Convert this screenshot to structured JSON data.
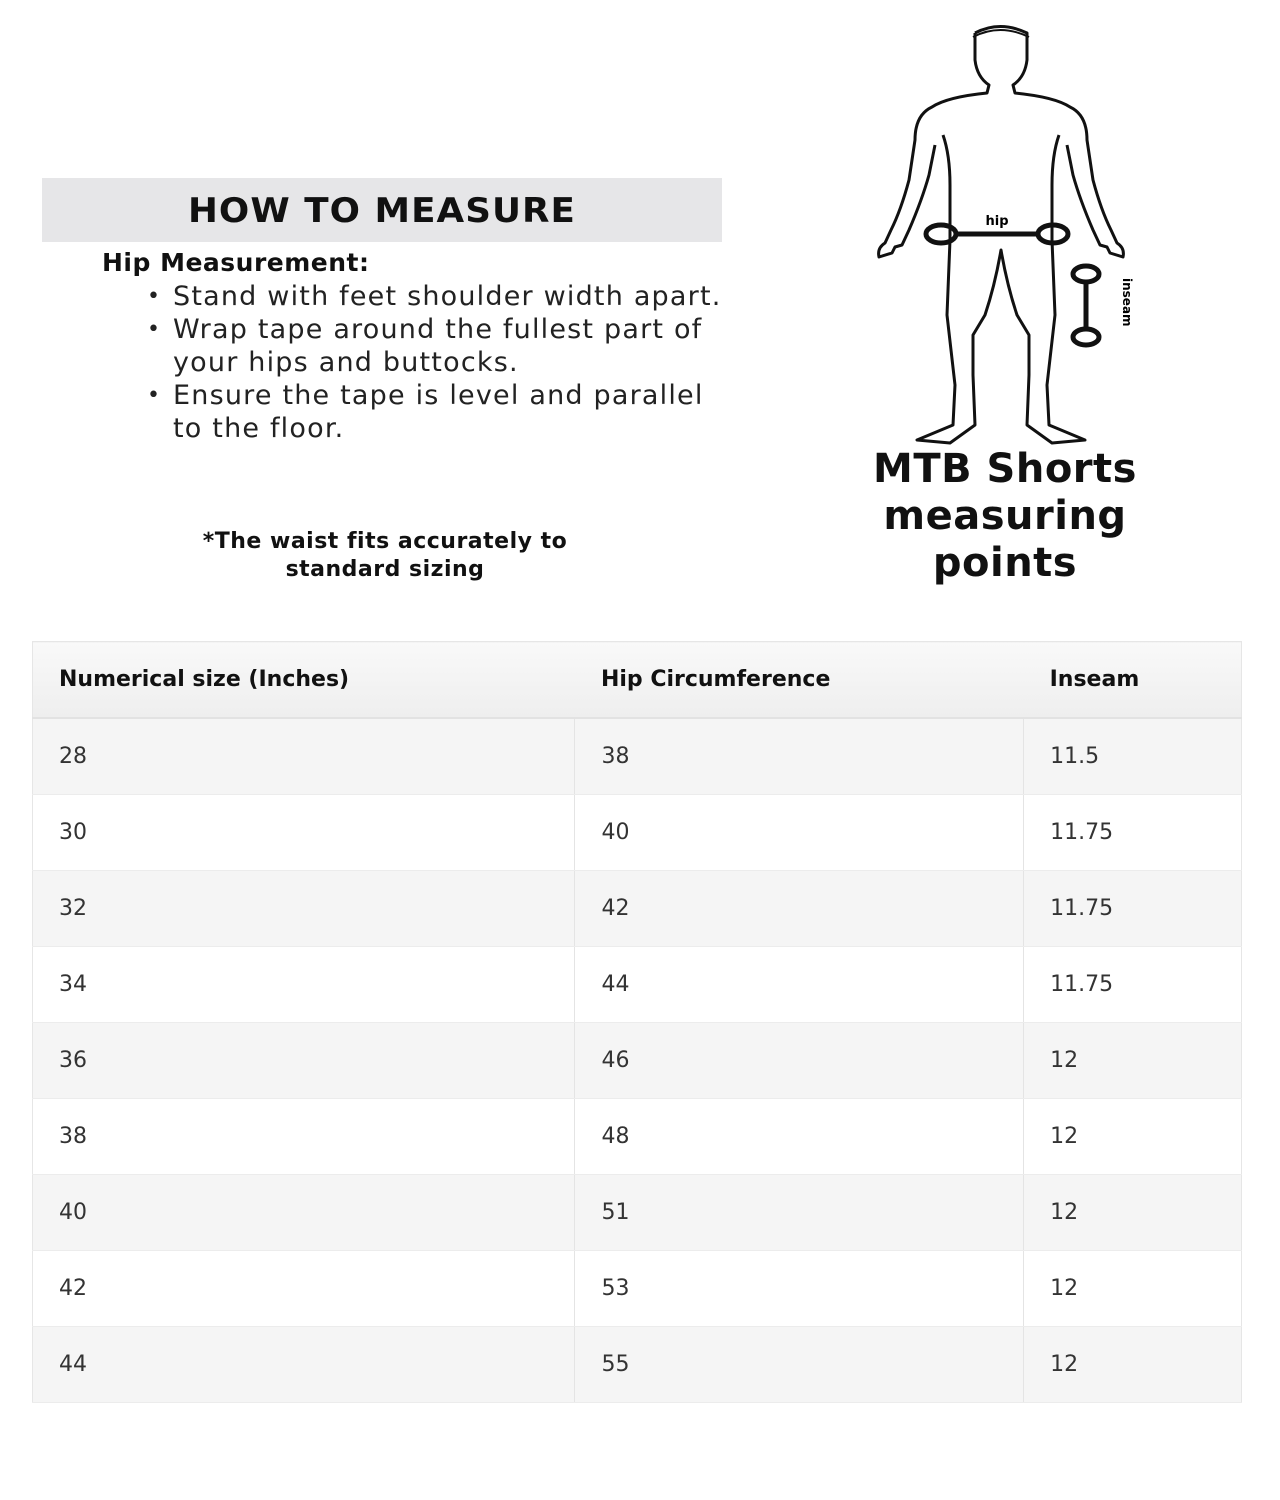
{
  "how_to_measure": {
    "title": "HOW TO MEASURE",
    "hip_title": "Hip Measurement:",
    "bullets": [
      "Stand with feet shoulder width apart.",
      "Wrap tape around the fullest part of your hips and buttocks.",
      "Ensure the tape is level and parallel to the floor."
    ],
    "note_line1": "*The waist fits accurately to",
    "note_line2": "standard sizing"
  },
  "figure": {
    "hip_label": "hip",
    "inseam_label": "inseam",
    "caption_line1": "MTB Shorts",
    "caption_line2": "measuring",
    "caption_line3": "points"
  },
  "table": {
    "headers": [
      "Numerical size (Inches)",
      "Hip Circumference",
      "Inseam"
    ],
    "rows": [
      [
        "28",
        "38",
        "11.5"
      ],
      [
        "30",
        "40",
        "11.75"
      ],
      [
        "32",
        "42",
        "11.75"
      ],
      [
        "34",
        "44",
        "11.75"
      ],
      [
        "36",
        "46",
        "12"
      ],
      [
        "38",
        "48",
        "12"
      ],
      [
        "40",
        "51",
        "12"
      ],
      [
        "42",
        "53",
        "12"
      ],
      [
        "44",
        "55",
        "12"
      ]
    ]
  }
}
